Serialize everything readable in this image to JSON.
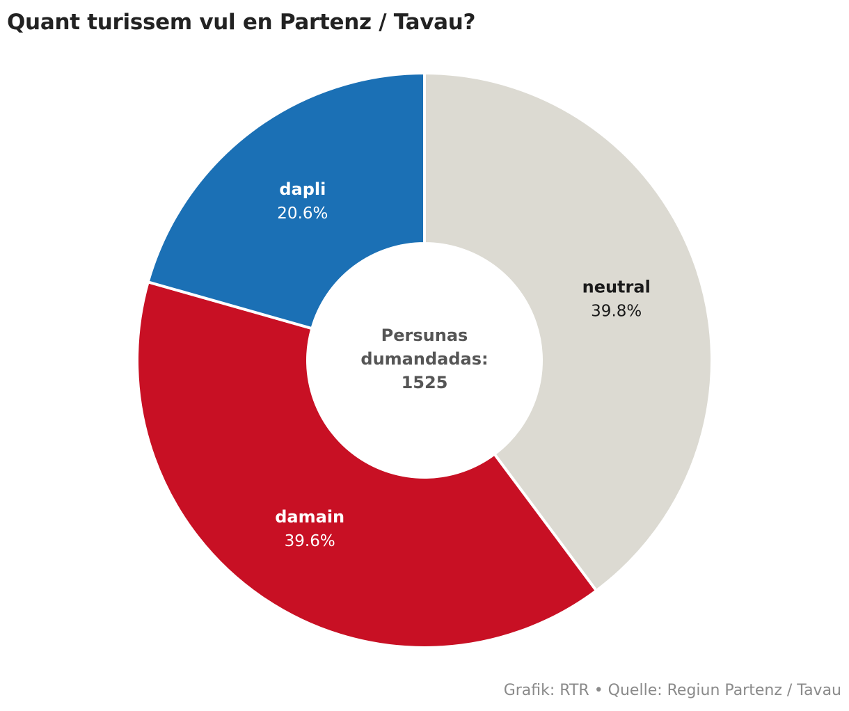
{
  "title": "Quant turissem vul en Partenz / Tavau?",
  "source": "Grafik: RTR • Quelle: Regiun Partenz / Tavau",
  "center": {
    "line1": "Persunas",
    "line2": "dumandadas:",
    "line3": "1525"
  },
  "chart_data": {
    "type": "pie",
    "donut": true,
    "slices": [
      {
        "name": "neutral",
        "value": 39.8,
        "percent_label": "39.8%",
        "color": "#dcdad2",
        "name_color": "#1a1a1a",
        "pct_color": "#1a1a1a"
      },
      {
        "name": "damain",
        "value": 39.6,
        "percent_label": "39.6%",
        "color": "#c81024",
        "name_color": "#ffffff",
        "pct_color": "#ffffff"
      },
      {
        "name": "dapli",
        "value": 20.6,
        "percent_label": "20.6%",
        "color": "#1b70b5",
        "name_color": "#ffffff",
        "pct_color": "#ffffff"
      }
    ],
    "start": "12 o'clock",
    "direction": "clockwise",
    "center_label": "Persunas dumandadas: 1525"
  }
}
